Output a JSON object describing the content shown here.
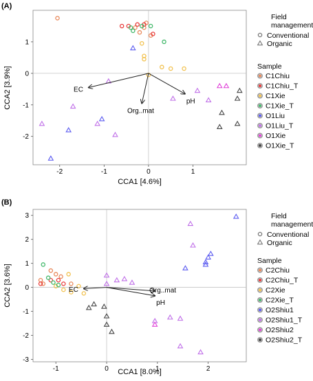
{
  "chart_data": [
    {
      "type": "scatter",
      "panel_label": "(A)",
      "xlabel": "CCA1  [4.6%]",
      "ylabel": "CCA2  [3.9%]",
      "xlim": [
        -2.6,
        2.2
      ],
      "ylim": [
        -2.9,
        2.0
      ],
      "xticks": [
        -2,
        -1,
        0,
        1
      ],
      "yticks": [
        -2,
        -1,
        0,
        1
      ],
      "legend": {
        "field_title": "Field\nmanagement",
        "field_items": [
          "Conventional",
          "Organic"
        ],
        "sample_title": "Sample",
        "sample_items": [
          {
            "name": "C1Chiu",
            "color": "#e8885a"
          },
          {
            "name": "C1Chiu_T",
            "color": "#e83a3a"
          },
          {
            "name": "C1Xie",
            "color": "#f2c14e"
          },
          {
            "name": "C1Xie_T",
            "color": "#41b86a"
          },
          {
            "name": "O1Liu",
            "color": "#5b5bf0"
          },
          {
            "name": "O1Liu_T",
            "color": "#c070e8"
          },
          {
            "name": "O1Xie",
            "color": "#e040d8"
          },
          {
            "name": "O1Xie_T",
            "color": "#444444"
          }
        ]
      },
      "arrows": [
        {
          "label": "EC",
          "x": -1.35,
          "y": -0.45
        },
        {
          "label": "Org..mat",
          "x": -0.15,
          "y": -0.95
        },
        {
          "label": "pH",
          "x": 0.82,
          "y": -0.65
        }
      ],
      "series": [
        {
          "name": "C1Chiu",
          "shape": "circle",
          "color": "#e8885a",
          "points": [
            [
              -2.05,
              1.75
            ],
            [
              -0.1,
              1.45
            ],
            [
              -0.05,
              1.6
            ],
            [
              0.05,
              1.2
            ],
            [
              -0.3,
              1.45
            ],
            [
              -0.2,
              1.3
            ]
          ]
        },
        {
          "name": "C1Chiu_T",
          "shape": "circle",
          "color": "#e83a3a",
          "points": [
            [
              -0.6,
              1.5
            ],
            [
              -0.45,
              1.5
            ],
            [
              -0.25,
              1.55
            ],
            [
              -0.1,
              1.55
            ],
            [
              0.1,
              1.25
            ]
          ]
        },
        {
          "name": "C1Xie",
          "shape": "circle",
          "color": "#f2c14e",
          "points": [
            [
              -0.1,
              0.55
            ],
            [
              -0.1,
              0.45
            ],
            [
              0.3,
              0.2
            ],
            [
              0.5,
              0.15
            ],
            [
              0.8,
              0.15
            ],
            [
              0.0,
              -0.05
            ],
            [
              -0.15,
              0.95
            ]
          ]
        },
        {
          "name": "C1Xie_T",
          "shape": "circle",
          "color": "#41b86a",
          "points": [
            [
              -0.4,
              1.45
            ],
            [
              -0.15,
              1.5
            ],
            [
              0.05,
              1.5
            ],
            [
              0.35,
              1.0
            ],
            [
              -0.35,
              1.35
            ]
          ]
        },
        {
          "name": "O1Liu",
          "shape": "triangle",
          "color": "#5b5bf0",
          "points": [
            [
              -0.35,
              0.8
            ],
            [
              -1.05,
              -1.45
            ],
            [
              -1.8,
              -1.8
            ],
            [
              -2.2,
              -2.7
            ]
          ]
        },
        {
          "name": "O1Liu_T",
          "shape": "triangle",
          "color": "#c070e8",
          "points": [
            [
              -0.9,
              -0.25
            ],
            [
              -1.7,
              -1.05
            ],
            [
              -2.4,
              -1.6
            ],
            [
              -1.15,
              -1.6
            ],
            [
              -0.75,
              -1.95
            ],
            [
              0.55,
              -0.8
            ],
            [
              1.1,
              -0.55
            ],
            [
              1.35,
              -0.85
            ]
          ]
        },
        {
          "name": "O1Xie",
          "shape": "triangle",
          "color": "#e040d8",
          "points": [
            [
              1.6,
              -0.4
            ],
            [
              1.75,
              -0.4
            ]
          ]
        },
        {
          "name": "O1Xie_T",
          "shape": "triangle",
          "color": "#444444",
          "points": [
            [
              2.05,
              -0.55
            ],
            [
              2.0,
              -0.8
            ],
            [
              1.65,
              -1.25
            ],
            [
              1.6,
              -1.7
            ],
            [
              2.0,
              -1.6
            ]
          ]
        }
      ]
    },
    {
      "type": "scatter",
      "panel_label": "(B)",
      "xlabel": "CCA1  [8.0%]",
      "ylabel": "CCA2  [3.6%]",
      "xlim": [
        -1.45,
        2.75
      ],
      "ylim": [
        -3.1,
        3.25
      ],
      "xticks": [
        -1,
        0,
        1,
        2
      ],
      "yticks": [
        -3,
        -2,
        -1,
        0,
        1,
        2,
        3
      ],
      "legend": {
        "field_title": "Field\nmanagement",
        "field_items": [
          "Conventional",
          "Organic"
        ],
        "sample_title": "Sample",
        "sample_items": [
          {
            "name": "C2Chiu",
            "color": "#e8885a"
          },
          {
            "name": "C2Chiu_T",
            "color": "#e83a3a"
          },
          {
            "name": "C2Xie",
            "color": "#f2c14e"
          },
          {
            "name": "C2Xie_T",
            "color": "#41b86a"
          },
          {
            "name": "O2Shiu1",
            "color": "#5b5bf0"
          },
          {
            "name": "O2Shiu1_T",
            "color": "#c070e8"
          },
          {
            "name": "O2Shiu2",
            "color": "#e040d8"
          },
          {
            "name": "O2Shiu2_T",
            "color": "#444444"
          }
        ]
      },
      "arrows": [
        {
          "label": "EC",
          "x": -0.45,
          "y": -0.05
        },
        {
          "label": "Org..mat",
          "x": 0.95,
          "y": -0.15
        },
        {
          "label": "pH",
          "x": 0.95,
          "y": -0.35
        }
      ],
      "series": [
        {
          "name": "C2Chiu",
          "shape": "circle",
          "color": "#e8885a",
          "points": [
            [
              -1.3,
              0.3
            ],
            [
              -1.25,
              0.15
            ],
            [
              -1.1,
              0.7
            ],
            [
              -1.0,
              0.55
            ],
            [
              -0.9,
              0.45
            ],
            [
              -0.7,
              0.15
            ]
          ]
        },
        {
          "name": "C2Chiu_T",
          "shape": "circle",
          "color": "#e83a3a",
          "points": [
            [
              -1.3,
              0.15
            ],
            [
              -1.1,
              0.3
            ],
            [
              -0.95,
              0.3
            ],
            [
              -0.85,
              0.15
            ]
          ]
        },
        {
          "name": "C2Xie",
          "shape": "circle",
          "color": "#f2c14e",
          "points": [
            [
              -1.0,
              0.05
            ],
            [
              -0.85,
              -0.1
            ],
            [
              -0.7,
              -0.2
            ],
            [
              -0.55,
              0.05
            ],
            [
              -0.45,
              -0.25
            ],
            [
              -0.75,
              0.55
            ]
          ]
        },
        {
          "name": "C2Xie_T",
          "shape": "circle",
          "color": "#41b86a",
          "points": [
            [
              -1.25,
              0.95
            ],
            [
              -1.15,
              0.4
            ],
            [
              -1.05,
              0.2
            ],
            [
              -0.95,
              0.1
            ]
          ]
        },
        {
          "name": "O2Shiu1",
          "shape": "triangle",
          "color": "#5b5bf0",
          "points": [
            [
              2.55,
              2.95
            ],
            [
              2.05,
              1.4
            ],
            [
              2.0,
              1.25
            ],
            [
              1.95,
              0.95
            ],
            [
              1.55,
              0.8
            ],
            [
              1.95,
              1.05
            ]
          ]
        },
        {
          "name": "O2Shiu1_T",
          "shape": "triangle",
          "color": "#c070e8",
          "points": [
            [
              1.65,
              2.65
            ],
            [
              1.7,
              1.75
            ],
            [
              0.0,
              0.5
            ],
            [
              0.2,
              0.3
            ],
            [
              0.35,
              0.35
            ],
            [
              0.5,
              0.2
            ],
            [
              0.0,
              0.15
            ],
            [
              1.25,
              -1.25
            ],
            [
              1.45,
              -1.3
            ],
            [
              1.85,
              -2.7
            ],
            [
              1.45,
              -2.45
            ],
            [
              0.95,
              -1.4
            ]
          ]
        },
        {
          "name": "O2Shiu2",
          "shape": "triangle",
          "color": "#e040d8",
          "points": [
            [
              0.95,
              -1.55
            ]
          ]
        },
        {
          "name": "O2Shiu2_T",
          "shape": "triangle",
          "color": "#444444",
          "points": [
            [
              -0.25,
              -0.7
            ],
            [
              -0.35,
              -0.85
            ],
            [
              -0.05,
              -0.8
            ],
            [
              0.0,
              -1.2
            ],
            [
              0.0,
              -1.55
            ],
            [
              0.1,
              -1.85
            ]
          ]
        }
      ]
    }
  ]
}
